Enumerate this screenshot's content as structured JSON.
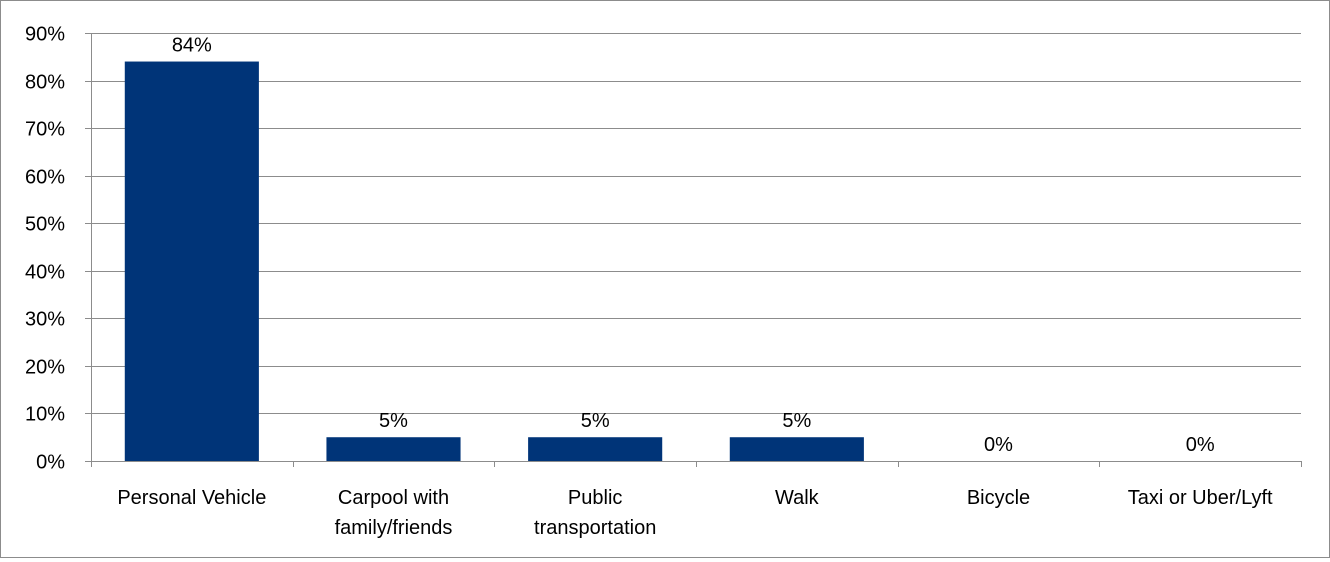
{
  "chart_data": {
    "type": "bar",
    "title": "",
    "xlabel": "",
    "ylabel": "",
    "categories": [
      [
        "Personal Vehicle"
      ],
      [
        "Carpool with",
        "family/friends"
      ],
      [
        "Public",
        "transportation"
      ],
      [
        "Walk"
      ],
      [
        "Bicycle"
      ],
      [
        "Taxi or Uber/Lyft"
      ]
    ],
    "values": [
      84,
      5,
      5,
      5,
      0,
      0
    ],
    "data_labels": [
      "84%",
      "5%",
      "5%",
      "5%",
      "0%",
      "0%"
    ],
    "ylim": [
      0,
      90
    ],
    "yticks": [
      0,
      10,
      20,
      30,
      40,
      50,
      60,
      70,
      80,
      90
    ],
    "ytick_labels": [
      "0%",
      "10%",
      "20%",
      "30%",
      "40%",
      "50%",
      "60%",
      "70%",
      "80%",
      "90%"
    ],
    "grid": true,
    "legend": "none",
    "colors": {
      "bar": "#003478",
      "grid": "#8c8c8c",
      "axis": "#8c8c8c"
    }
  }
}
